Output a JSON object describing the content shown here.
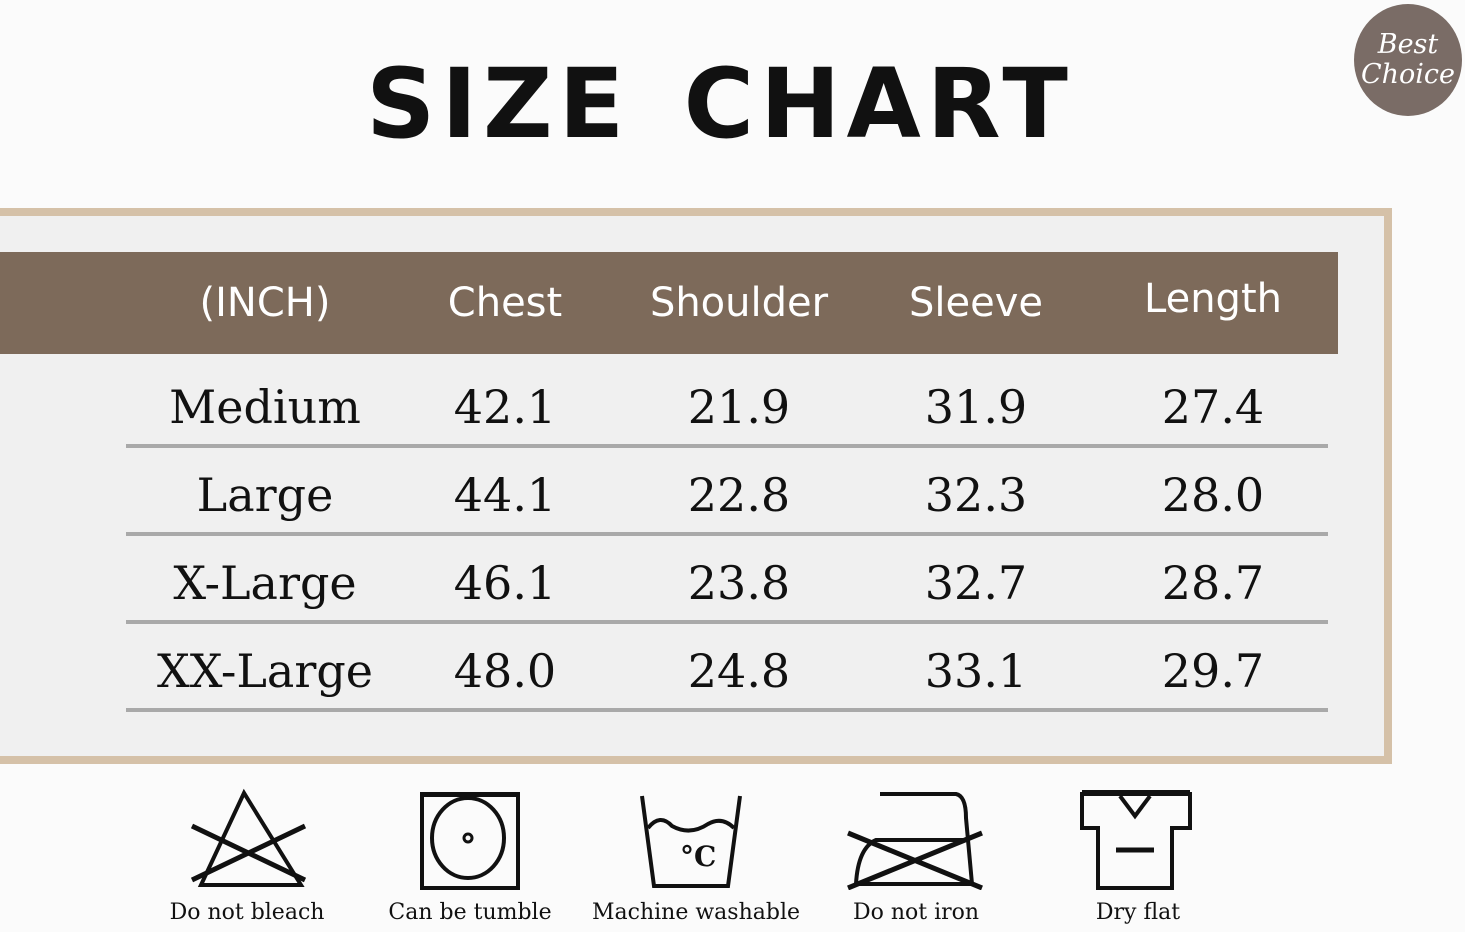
{
  "title": "SIZE CHART",
  "badge": {
    "line1": "Best",
    "line2": "Choice"
  },
  "colors": {
    "header": "#7d6a5a",
    "frame": "#d5c1a8",
    "badge": "#7a6c66",
    "separator": "#a9a9a9"
  },
  "table": {
    "headers": [
      "(INCH)",
      "Chest",
      "Shoulder",
      "Sleeve",
      "Length"
    ],
    "rows": [
      [
        "Medium",
        "42.1",
        "21.9",
        "31.9",
        "27.4"
      ],
      [
        "Large",
        "44.1",
        "22.8",
        "32.3",
        "28.0"
      ],
      [
        "X-Large",
        "46.1",
        "23.8",
        "32.7",
        "28.7"
      ],
      [
        "XX-Large",
        "48.0",
        "24.8",
        "33.1",
        "29.7"
      ]
    ]
  },
  "care": [
    {
      "icon": "no-bleach-icon",
      "label": "Do not bleach"
    },
    {
      "icon": "tumble-dry-icon",
      "label": "Can be tumble"
    },
    {
      "icon": "machine-wash-icon",
      "label": "Machine washable"
    },
    {
      "icon": "no-iron-icon",
      "label": "Do not iron"
    },
    {
      "icon": "dry-flat-icon",
      "label": "Dry flat"
    }
  ]
}
